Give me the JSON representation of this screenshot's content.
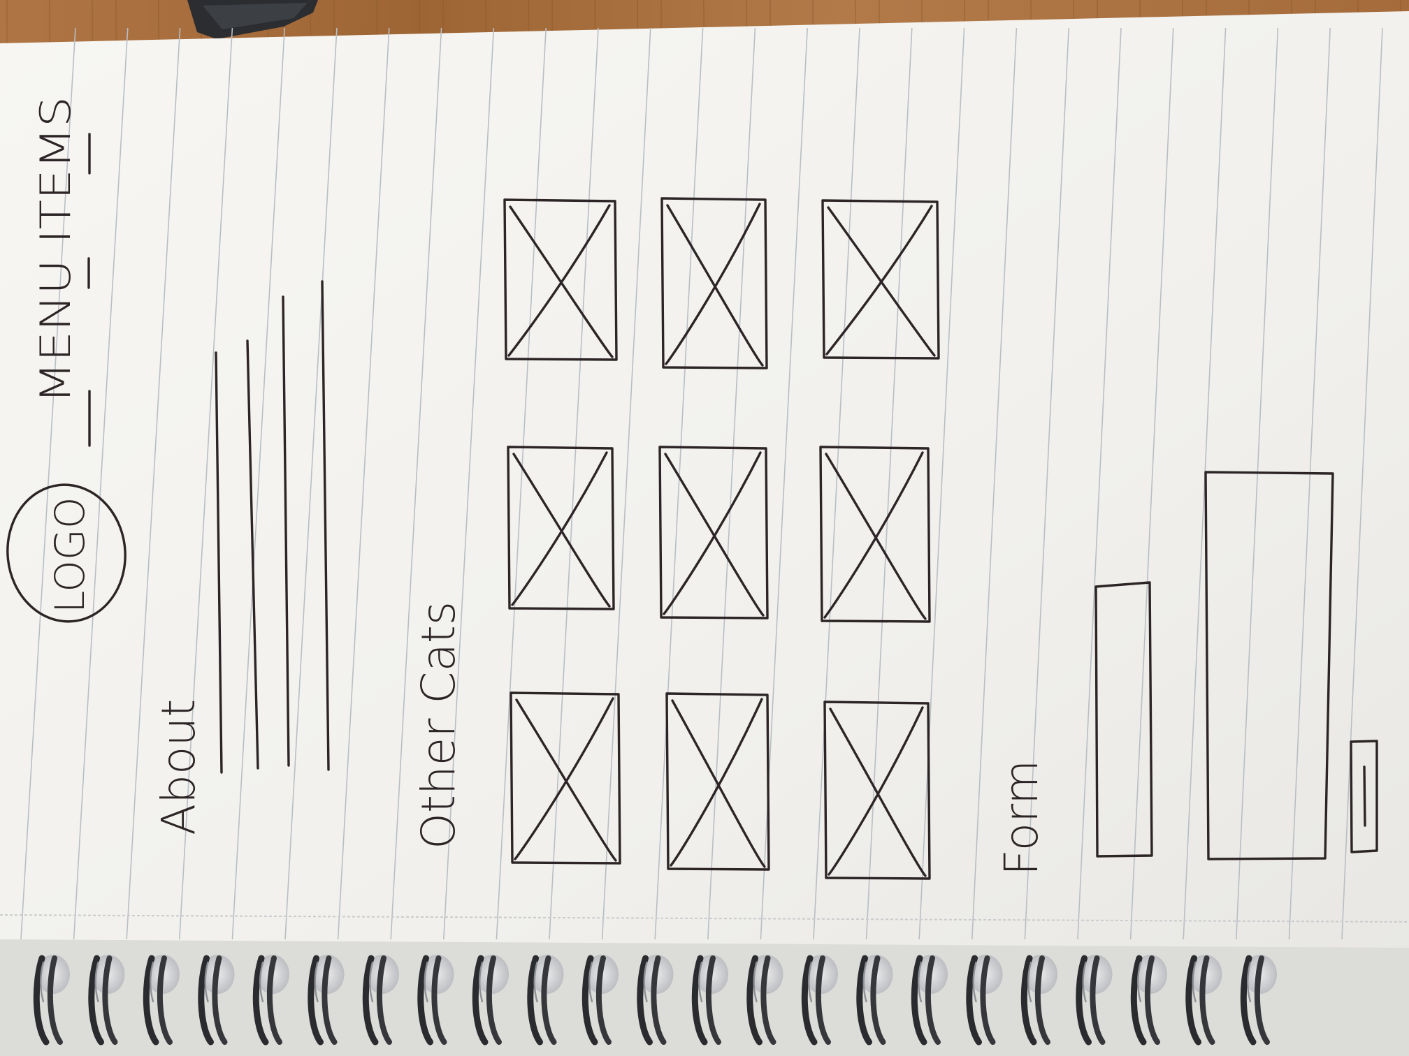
{
  "sketch": {
    "logo_label": "LOGO",
    "menu_label": "MENU ITEMS",
    "about_heading": "About",
    "other_cats_heading": "Other Cats",
    "form_heading": "Form"
  },
  "colors": {
    "table_wood": "#a86d3d",
    "paper": "#f3f2ef",
    "rule_line": "#b9bec4",
    "ink": "#2c2426",
    "spiral_ring": "#2a2b2e"
  },
  "image_placeholder_count": 9,
  "spiral_ring_count": 23
}
